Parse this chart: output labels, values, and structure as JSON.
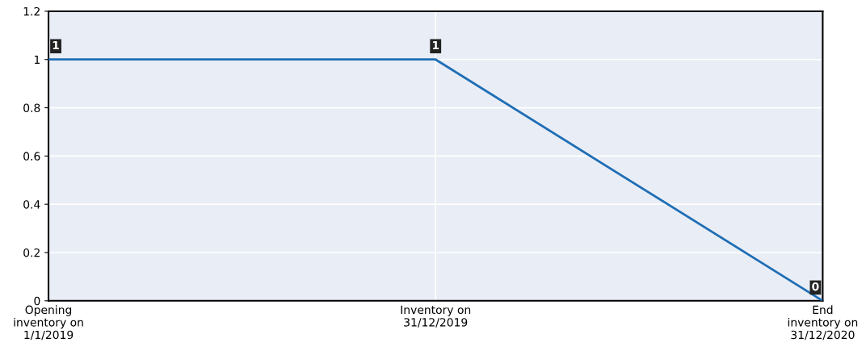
{
  "chart_data": {
    "type": "line",
    "categories": [
      "Opening\ninventory on\n1/1/2019",
      "Inventory on\n31/12/2019",
      "End\ninventory on\n31/12/2020"
    ],
    "series": [
      {
        "color": "#1f6eb5",
        "values": [
          1,
          1,
          0
        ]
      }
    ],
    "ylim": [
      0,
      1.2
    ],
    "yticks": [
      0,
      0.2,
      0.4,
      0.6,
      0.8,
      1,
      1.2
    ],
    "grid": true,
    "data_labels": true,
    "marker": "none",
    "line_style": "solid"
  }
}
